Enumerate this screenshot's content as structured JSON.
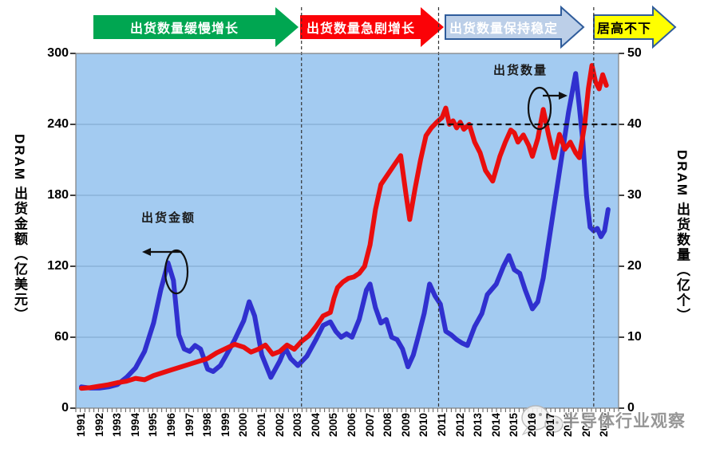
{
  "stages": [
    {
      "label": "出货数量缓慢增长",
      "fill": "#00A651",
      "text_color": "#FFFFFF",
      "border": ""
    },
    {
      "label": "出货数量急剧增长",
      "fill": "#FB0207",
      "text_color": "#FFFFFF",
      "border": ""
    },
    {
      "label": "出货数量保持稳定",
      "fill": "#BCCFE8",
      "text_color": "#FFFFFF",
      "border": "#2F5C9B"
    },
    {
      "label": "居高不下",
      "fill": "#FFFF00",
      "text_color": "#000000",
      "border": "#2F5C9B"
    }
  ],
  "left_axis": {
    "title": "DRAM 出货金额（亿美元）"
  },
  "right_axis": {
    "title": "DRAM 出货数量（亿个）"
  },
  "annotations": {
    "revenue_label": "出货金额",
    "units_label": "出货数量"
  },
  "watermark": {
    "text": "半导体行业观察"
  },
  "chart_data": {
    "type": "line",
    "title": "",
    "x_ticks": [
      1991,
      1992,
      1993,
      1994,
      1995,
      1996,
      1997,
      1998,
      1999,
      2000,
      2001,
      2002,
      2003,
      2004,
      2005,
      2006,
      2007,
      2008,
      2009,
      2010,
      2011,
      2012,
      2013,
      2014,
      2015,
      2016,
      2017,
      2018,
      2019,
      2020
    ],
    "left_ticks": [
      300,
      240,
      180,
      120,
      60,
      0
    ],
    "right_ticks": [
      50,
      40,
      30,
      20,
      10,
      0
    ],
    "left_ylim": [
      0,
      300
    ],
    "right_ylim": [
      0,
      50
    ],
    "xlim": [
      1991,
      2020.5
    ],
    "grid": "horizontal",
    "plot_bg": "#A3CBF1",
    "gridline_color": "#84ADD4",
    "reference_lines": {
      "vertical_dashed_years": [
        2003.2,
        2010.8,
        2019.4
      ],
      "horizontal_dashed_right_value": 40,
      "horizontal_dashed_from_year": 2010.8
    },
    "series": [
      {
        "name": "出货金额",
        "axis": "left",
        "unit": "亿美元",
        "color": "#3030CF",
        "x": [
          1991,
          1991.5,
          1992,
          1992.5,
          1993,
          1993.5,
          1994,
          1994.5,
          1995,
          1995.4,
          1995.8,
          1996.1,
          1996.4,
          1996.7,
          1997,
          1997.3,
          1997.6,
          1998,
          1998.3,
          1998.7,
          1999,
          1999.5,
          2000,
          2000.3,
          2000.6,
          2001,
          2001.5,
          2002,
          2002.3,
          2002.6,
          2003,
          2003.5,
          2004,
          2004.4,
          2004.8,
          2005.1,
          2005.4,
          2005.7,
          2006,
          2006.4,
          2006.8,
          2007,
          2007.3,
          2007.6,
          2007.9,
          2008.2,
          2008.5,
          2008.8,
          2009.1,
          2009.4,
          2009.7,
          2010,
          2010.3,
          2010.6,
          2010.9,
          2011.2,
          2011.5,
          2011.8,
          2012.1,
          2012.4,
          2012.8,
          2013.2,
          2013.5,
          2014,
          2014.4,
          2014.7,
          2015,
          2015.3,
          2015.6,
          2016,
          2016.3,
          2016.6,
          2017,
          2017.5,
          2018,
          2018.4,
          2018.6,
          2018.8,
          2019,
          2019.2,
          2019.4,
          2019.6,
          2019.8,
          2020,
          2020.2
        ],
        "y": [
          18,
          17,
          17,
          18,
          20,
          26,
          34,
          48,
          72,
          100,
          123,
          108,
          62,
          50,
          48,
          53,
          50,
          33,
          31,
          36,
          44,
          58,
          74,
          90,
          78,
          45,
          26,
          40,
          51,
          42,
          36,
          44,
          58,
          70,
          73,
          65,
          60,
          63,
          60,
          75,
          100,
          105,
          85,
          72,
          75,
          60,
          58,
          50,
          35,
          45,
          62,
          80,
          105,
          95,
          88,
          65,
          62,
          58,
          55,
          53,
          69,
          80,
          96,
          105,
          120,
          129,
          117,
          114,
          100,
          84,
          90,
          110,
          150,
          200,
          250,
          283,
          255,
          225,
          180,
          153,
          150,
          152,
          145,
          150,
          168
        ]
      },
      {
        "name": "出货数量",
        "axis": "right",
        "unit": "亿个",
        "color": "#E90E0E",
        "x": [
          1991,
          1991.5,
          1992,
          1992.5,
          1993,
          1993.5,
          1994,
          1994.5,
          1995,
          1995.5,
          1996,
          1996.5,
          1997,
          1997.5,
          1998,
          1998.5,
          1999,
          1999.5,
          2000,
          2000.4,
          2000.8,
          2001.2,
          2001.6,
          2002,
          2002.4,
          2002.8,
          2003.2,
          2003.6,
          2004,
          2004.4,
          2004.8,
          2005,
          2005.2,
          2005.5,
          2005.8,
          2006.1,
          2006.4,
          2006.7,
          2007,
          2007.3,
          2007.6,
          2008,
          2008.4,
          2008.7,
          2009,
          2009.2,
          2009.5,
          2009.8,
          2010.1,
          2010.4,
          2010.7,
          2011,
          2011.2,
          2011.4,
          2011.6,
          2011.8,
          2012,
          2012.2,
          2012.5,
          2012.8,
          2013.1,
          2013.4,
          2013.8,
          2014.2,
          2014.5,
          2014.8,
          2015,
          2015.2,
          2015.5,
          2015.8,
          2016,
          2016.3,
          2016.6,
          2016.9,
          2017.2,
          2017.5,
          2017.8,
          2018.1,
          2018.4,
          2018.6,
          2018.9,
          2019.1,
          2019.3,
          2019.5,
          2019.7,
          2019.9,
          2020.1
        ],
        "y": [
          2.8,
          2.9,
          3.1,
          3.3,
          3.6,
          3.8,
          4.2,
          4.0,
          4.6,
          5.0,
          5.4,
          5.8,
          6.2,
          6.6,
          7.0,
          7.8,
          8.4,
          9.0,
          8.6,
          7.9,
          8.3,
          8.9,
          7.6,
          8.0,
          8.9,
          8.3,
          9.4,
          10.2,
          11.5,
          13.0,
          13.5,
          15.5,
          17.0,
          17.8,
          18.3,
          18.5,
          19.0,
          20.0,
          23.0,
          28.0,
          31.5,
          33.0,
          34.5,
          35.6,
          30.0,
          26.6,
          31.0,
          35.0,
          38.4,
          39.5,
          40.3,
          41.0,
          42.3,
          40.0,
          40.5,
          39.5,
          40.3,
          39.3,
          40.0,
          37.5,
          36.0,
          33.5,
          32.0,
          35.5,
          37.5,
          39.2,
          38.8,
          37.5,
          38.5,
          37.0,
          35.5,
          38.0,
          42.1,
          38.5,
          35.3,
          38.6,
          36.5,
          37.5,
          36.0,
          35.3,
          40.0,
          45.0,
          48.3,
          46.0,
          45.0,
          47.0,
          45.5
        ]
      }
    ]
  }
}
